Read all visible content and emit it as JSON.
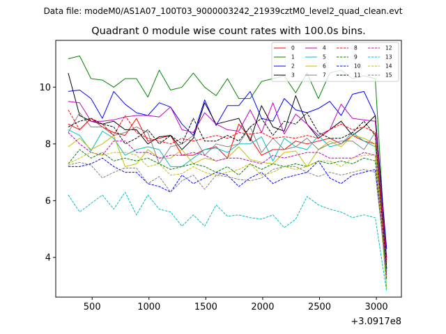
{
  "figure": {
    "suptitle": "Data file: modeM0/AS1A07_100T03_9000003242_21939cztM0_level2_quad_clean.evt"
  },
  "chart_data": {
    "type": "line",
    "title": "Quadrant 0 module wise count rates with 100.0s bins.",
    "xlabel": "",
    "ylabel": "",
    "x_offset_label": "+3.0917e8",
    "xlim": [
      180,
      3220
    ],
    "ylim": [
      2.6,
      11.65
    ],
    "xticks": [
      500,
      1000,
      1500,
      2000,
      2500,
      3000
    ],
    "yticks": [
      4,
      6,
      8,
      10
    ],
    "x": [
      290,
      390,
      490,
      590,
      690,
      790,
      890,
      990,
      1090,
      1190,
      1290,
      1390,
      1490,
      1590,
      1690,
      1790,
      1890,
      1990,
      2090,
      2190,
      2290,
      2390,
      2490,
      2590,
      2690,
      2790,
      2890,
      2990,
      3090
    ],
    "legend": {
      "location": "top-right",
      "columns": 4
    },
    "series": [
      {
        "name": "0",
        "color": "#ff0000",
        "dash": "solid",
        "values": [
          8.7,
          8.5,
          8.9,
          8.6,
          8.4,
          8.3,
          8.9,
          8.1,
          8.2,
          8.3,
          7.6,
          7.6,
          7.8,
          7.9,
          7.5,
          8.7,
          8.2,
          7.6,
          7.8,
          7.8,
          8.1,
          8.0,
          8.1,
          8.2,
          8.0,
          8.3,
          8.1,
          8.0,
          3.5
        ]
      },
      {
        "name": "1",
        "color": "#008000",
        "dash": "solid",
        "values": [
          11.0,
          11.1,
          10.3,
          10.25,
          10.0,
          10.3,
          10.3,
          9.65,
          10.6,
          9.9,
          10.0,
          10.5,
          10.0,
          9.7,
          10.3,
          9.6,
          9.6,
          10.2,
          10.3,
          10.4,
          9.8,
          10.5,
          9.6,
          10.5,
          10.6,
          10.3,
          10.4,
          10.3,
          3.6
        ]
      },
      {
        "name": "2",
        "color": "#0000ff",
        "dash": "solid",
        "values": [
          9.85,
          9.9,
          9.6,
          8.9,
          9.85,
          9.4,
          9.1,
          9.0,
          9.45,
          9.3,
          8.7,
          8.3,
          9.55,
          8.65,
          9.35,
          9.35,
          9.85,
          8.9,
          8.8,
          9.6,
          9.2,
          9.1,
          9.25,
          9.5,
          9.0,
          9.75,
          9.85,
          9.0,
          4.3
        ]
      },
      {
        "name": "3",
        "color": "#000000",
        "dash": "solid",
        "values": [
          10.5,
          9.0,
          8.8,
          8.7,
          8.8,
          8.5,
          8.5,
          8.0,
          8.25,
          8.3,
          7.8,
          8.2,
          9.45,
          8.7,
          8.8,
          8.9,
          8.1,
          9.35,
          8.6,
          8.45,
          9.7,
          8.7,
          8.2,
          8.5,
          8.8,
          8.3,
          8.6,
          9.0,
          4.0
        ]
      },
      {
        "name": "4",
        "color": "#c000c0",
        "dash": "solid",
        "values": [
          9.5,
          9.45,
          8.8,
          8.8,
          8.85,
          8.95,
          9.0,
          9.0,
          8.95,
          9.3,
          8.5,
          8.4,
          9.1,
          8.7,
          8.5,
          8.45,
          9.2,
          8.4,
          9.45,
          8.35,
          9.05,
          8.7,
          8.3,
          8.5,
          9.4,
          8.9,
          8.85,
          8.8,
          3.9
        ]
      },
      {
        "name": "5",
        "color": "#00bfbf",
        "dash": "solid",
        "values": [
          8.5,
          8.3,
          7.75,
          8.45,
          8.2,
          7.6,
          7.8,
          7.9,
          7.8,
          7.2,
          7.2,
          7.5,
          7.8,
          7.85,
          7.7,
          8.0,
          8.0,
          8.25,
          7.4,
          8.2,
          7.9,
          7.8,
          8.3,
          7.9,
          8.0,
          8.4,
          8.1,
          7.9,
          2.9
        ]
      },
      {
        "name": "6",
        "color": "#bfbf00",
        "dash": "solid",
        "values": [
          7.9,
          8.2,
          7.8,
          8.0,
          8.3,
          7.2,
          7.3,
          7.8,
          7.5,
          7.5,
          7.8,
          7.3,
          7.5,
          7.4,
          7.5,
          7.9,
          7.45,
          7.35,
          7.3,
          7.7,
          7.75,
          7.2,
          7.8,
          8.1,
          7.9,
          8.3,
          8.2,
          8.0,
          3.3
        ]
      },
      {
        "name": "7",
        "color": "#808080",
        "dash": "solid",
        "values": [
          8.4,
          9.1,
          8.6,
          8.6,
          8.3,
          8.4,
          8.6,
          8.4,
          7.3,
          7.9,
          8.0,
          8.3,
          7.6,
          8.0,
          7.9,
          8.0,
          8.6,
          7.7,
          8.2,
          7.8,
          7.9,
          8.2,
          7.8,
          8.0,
          8.1,
          8.1,
          7.8,
          8.4,
          3.5
        ]
      },
      {
        "name": "8",
        "color": "#ff0000",
        "dash": "dashed",
        "values": [
          9.2,
          8.5,
          8.9,
          8.7,
          8.3,
          9.0,
          8.4,
          8.2,
          8.1,
          8.0,
          8.2,
          8.1,
          8.2,
          8.3,
          8.2,
          8.4,
          8.35,
          8.4,
          8.2,
          8.25,
          8.2,
          8.3,
          8.2,
          8.5,
          8.7,
          8.5,
          8.6,
          8.4,
          3.8
        ]
      },
      {
        "name": "9",
        "color": "#008000",
        "dash": "dashed",
        "values": [
          7.3,
          7.8,
          7.5,
          7.7,
          7.4,
          7.5,
          7.4,
          7.5,
          7.3,
          7.1,
          7.2,
          7.3,
          7.2,
          7.0,
          7.2,
          6.9,
          7.3,
          7.1,
          7.3,
          7.2,
          7.3,
          7.2,
          7.4,
          7.3,
          7.4,
          7.3,
          7.5,
          7.4,
          3.2
        ]
      },
      {
        "name": "10",
        "color": "#0000ff",
        "dash": "dashed",
        "values": [
          7.2,
          7.2,
          7.3,
          7.5,
          7.2,
          7.0,
          7.0,
          6.6,
          6.5,
          6.3,
          6.9,
          6.6,
          6.8,
          7.0,
          6.9,
          6.5,
          6.8,
          7.0,
          6.6,
          6.8,
          6.9,
          7.0,
          7.4,
          6.8,
          6.6,
          6.9,
          7.0,
          7.1,
          3.4
        ]
      },
      {
        "name": "11",
        "color": "#000000",
        "dash": "dashed",
        "values": [
          8.6,
          8.8,
          8.9,
          8.7,
          8.6,
          8.0,
          8.2,
          8.5,
          8.0,
          8.3,
          8.0,
          8.9,
          8.1,
          8.1,
          8.3,
          8.1,
          8.6,
          8.9,
          8.3,
          8.8,
          8.7,
          9.1,
          8.4,
          8.2,
          8.2,
          8.4,
          8.8,
          8.3,
          3.6
        ]
      },
      {
        "name": "12",
        "color": "#c000c0",
        "dash": "dashed",
        "values": [
          8.4,
          8.0,
          7.7,
          7.6,
          8.1,
          8.1,
          7.7,
          7.7,
          7.5,
          7.6,
          7.6,
          7.7,
          7.6,
          7.4,
          7.5,
          7.5,
          7.4,
          7.3,
          7.6,
          7.5,
          7.6,
          7.7,
          7.7,
          7.5,
          7.5,
          7.5,
          7.7,
          7.6,
          3.3
        ]
      },
      {
        "name": "13",
        "color": "#00bfbf",
        "dash": "dashed",
        "values": [
          6.2,
          5.6,
          5.9,
          6.2,
          5.7,
          6.3,
          5.5,
          6.2,
          5.7,
          5.6,
          5.1,
          5.5,
          5.1,
          5.85,
          5.45,
          5.5,
          5.4,
          5.35,
          5.5,
          5.05,
          5.35,
          6.15,
          5.85,
          5.7,
          5.6,
          5.4,
          5.5,
          5.4,
          2.8
        ]
      },
      {
        "name": "14",
        "color": "#bfbf00",
        "dash": "dashed",
        "values": [
          7.3,
          7.5,
          7.7,
          7.6,
          7.7,
          7.7,
          7.6,
          7.2,
          7.3,
          6.9,
          6.95,
          7.2,
          7.0,
          6.9,
          7.0,
          7.1,
          7.3,
          6.9,
          7.0,
          7.2,
          7.1,
          7.2,
          7.4,
          7.4,
          7.2,
          7.5,
          7.6,
          7.6,
          2.9
        ]
      },
      {
        "name": "15",
        "color": "#808080",
        "dash": "dashed",
        "values": [
          7.25,
          7.35,
          7.25,
          6.8,
          7.0,
          7.15,
          7.15,
          6.6,
          6.85,
          6.3,
          6.7,
          6.9,
          6.4,
          6.9,
          6.85,
          6.75,
          6.7,
          6.8,
          7.1,
          7.2,
          7.2,
          7.0,
          6.85,
          7.0,
          6.9,
          7.0,
          7.1,
          7.0,
          3.4
        ]
      }
    ]
  }
}
